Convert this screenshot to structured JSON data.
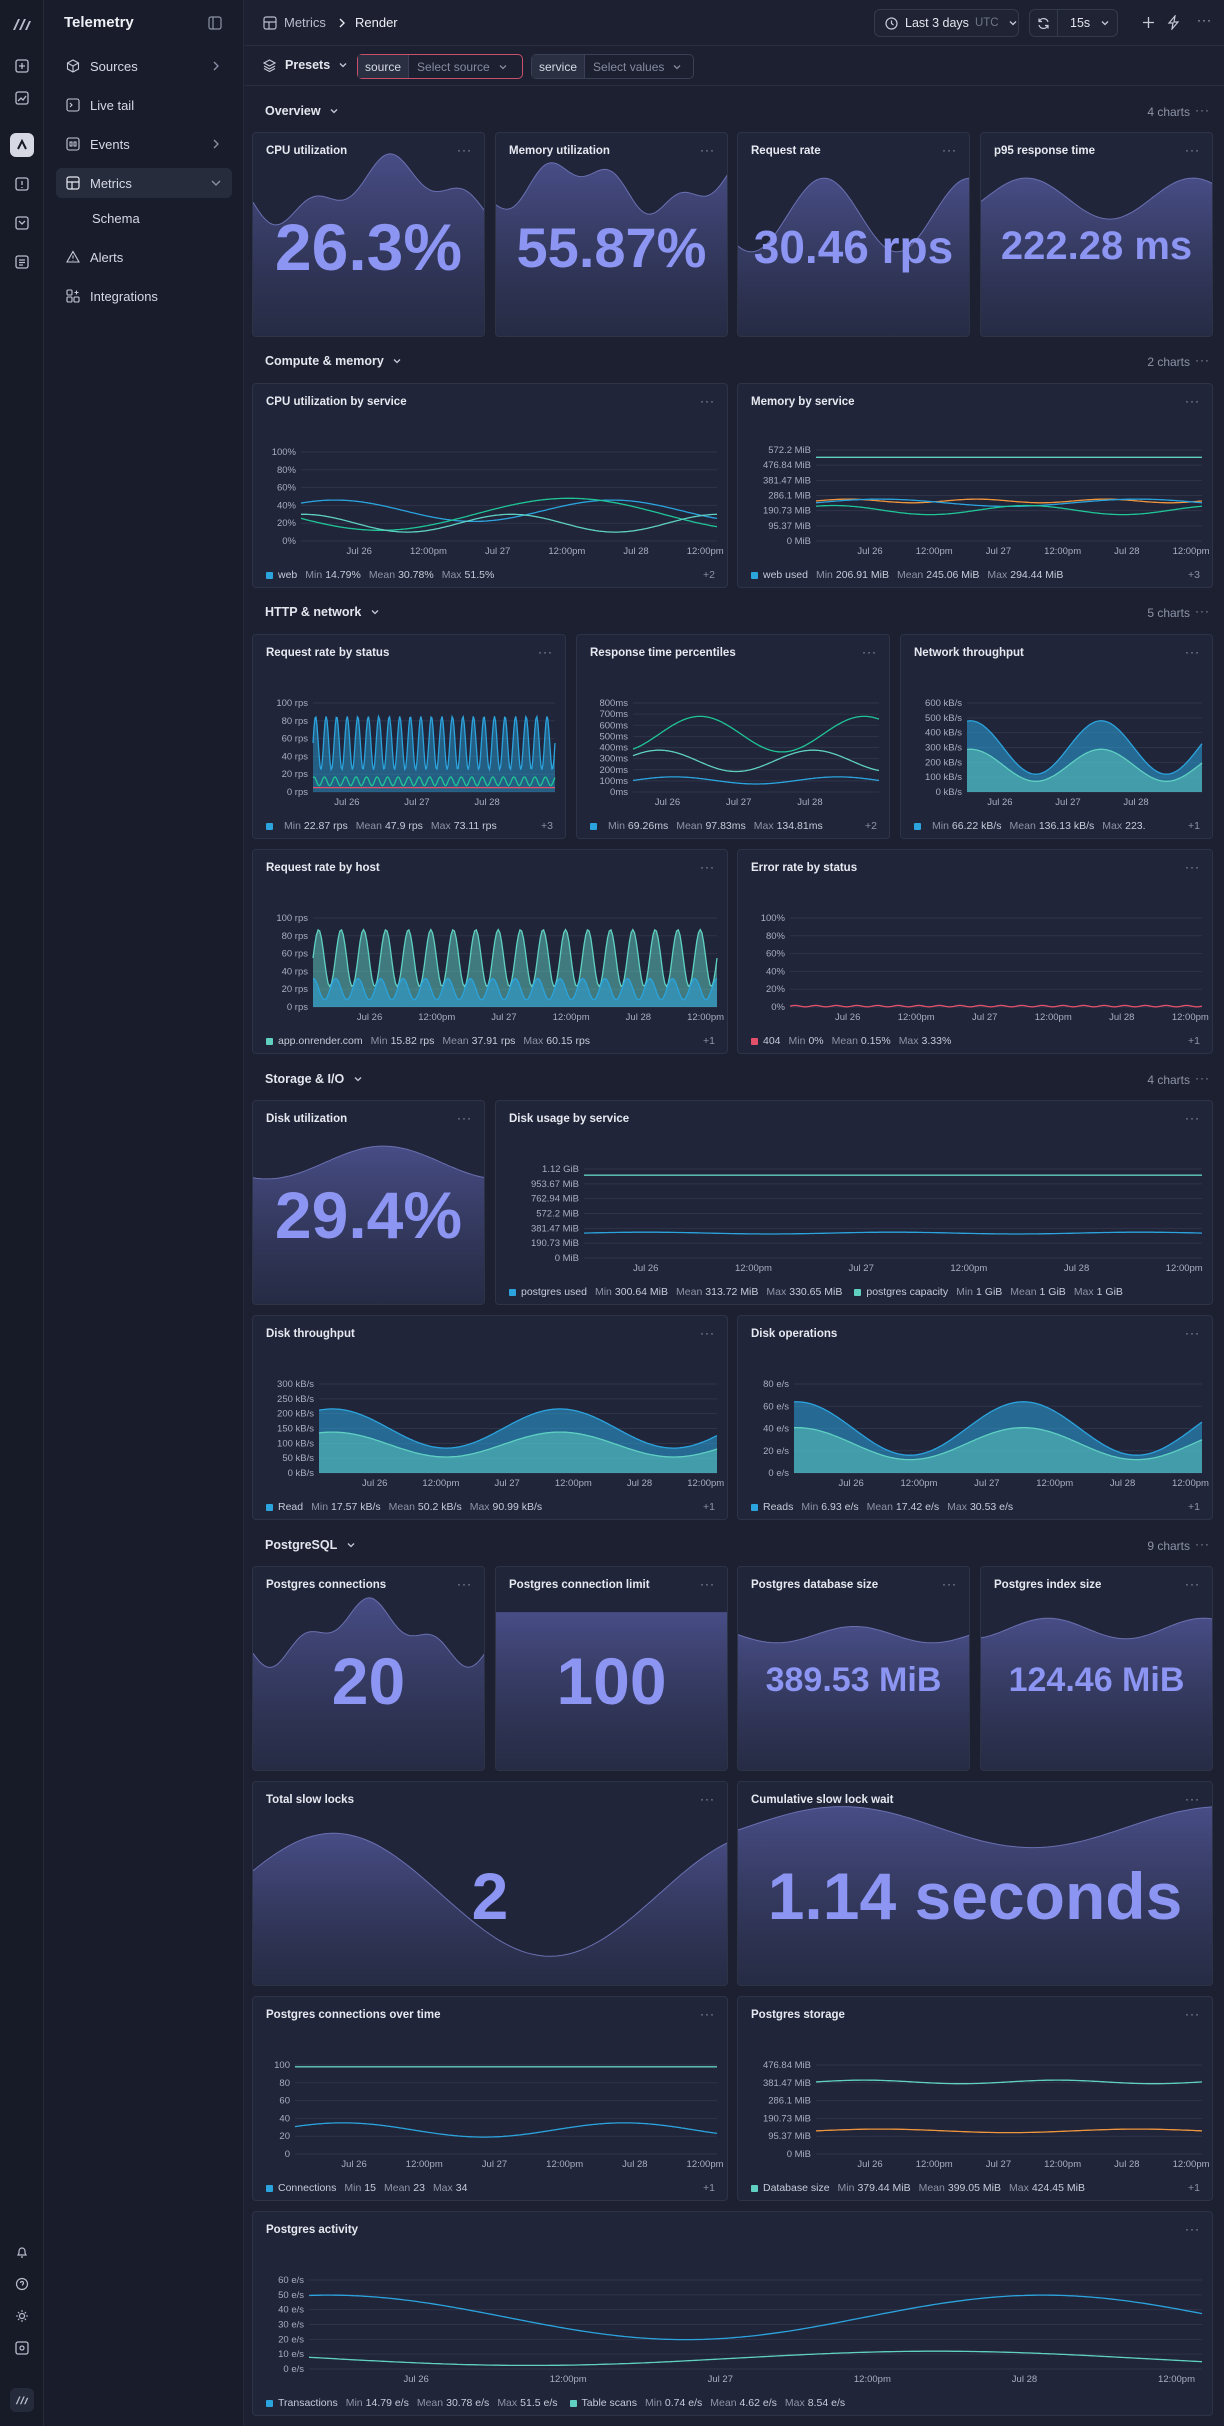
{
  "app": {
    "title": "Telemetry"
  },
  "nav": [
    {
      "label": "Sources",
      "icon": "cube-icon",
      "chevron": true
    },
    {
      "label": "Live tail",
      "icon": "terminal-icon",
      "chevron": false
    },
    {
      "label": "Events",
      "icon": "events-icon",
      "chevron": true
    },
    {
      "label": "Metrics",
      "icon": "grid-icon",
      "chevron": "down",
      "active": true
    },
    {
      "label": "Schema",
      "icon": "",
      "chevron": false,
      "sub": true
    },
    {
      "label": "Alerts",
      "icon": "warning-icon",
      "chevron": false
    },
    {
      "label": "Integrations",
      "icon": "puzzle-icon",
      "chevron": false
    }
  ],
  "breadcrumb": {
    "root": "Metrics",
    "current": "Render"
  },
  "toolbar": {
    "time_range": "Last 3 days",
    "tz": "UTC",
    "refresh": "15s"
  },
  "filters": {
    "presets": "Presets",
    "source_key": "source",
    "source_placeholder": "Select source",
    "service_key": "service",
    "service_placeholder": "Select values"
  },
  "sections": {
    "overview": {
      "title": "Overview",
      "count": "4 charts"
    },
    "compute": {
      "title": "Compute & memory",
      "count": "2 charts"
    },
    "http": {
      "title": "HTTP & network",
      "count": "5 charts"
    },
    "storage": {
      "title": "Storage & I/O",
      "count": "4 charts"
    },
    "postgres": {
      "title": "PostgreSQL",
      "count": "9 charts"
    }
  },
  "stats": {
    "cpu": {
      "title": "CPU utilization",
      "value": "26.3%"
    },
    "mem": {
      "title": "Memory utilization",
      "value": "55.87%"
    },
    "req": {
      "title": "Request rate",
      "value": "30.46 rps"
    },
    "p95": {
      "title": "p95 response time",
      "value": "222.28 ms"
    },
    "disk": {
      "title": "Disk utilization",
      "value": "29.4%"
    },
    "pgconn": {
      "title": "Postgres connections",
      "value": "20"
    },
    "pglimit": {
      "title": "Postgres connection limit",
      "value": "100"
    },
    "pgdb": {
      "title": "Postgres database size",
      "value": "389.53 MiB"
    },
    "pgidx": {
      "title": "Postgres index size",
      "value": "124.46 MiB"
    },
    "locks": {
      "title": "Total slow locks",
      "value": "2"
    },
    "lockwait": {
      "title": "Cumulative slow lock wait",
      "value": "1.14 seconds"
    }
  },
  "x_ticks_full": [
    "Jul 26",
    "12:00pm",
    "Jul 27",
    "12:00pm",
    "Jul 28",
    "12:00pm"
  ],
  "x_ticks_short": [
    "Jul 26",
    "Jul 27",
    "Jul 28"
  ],
  "charts": {
    "cpu_by_service": {
      "title": "CPU utilization by service",
      "y_ticks": [
        "100%",
        "80%",
        "60%",
        "40%",
        "20%",
        "0%"
      ],
      "legend": {
        "name": "web",
        "min": "14.79%",
        "mean": "30.78%",
        "max": "51.5%"
      },
      "more": "+2",
      "color": "#2ba3dd"
    },
    "mem_by_service": {
      "title": "Memory by service",
      "y_ticks": [
        "572.2 MiB",
        "476.84 MiB",
        "381.47 MiB",
        "286.1 MiB",
        "190.73 MiB",
        "95.37 MiB",
        "0 MiB"
      ],
      "legend": {
        "name": "web used",
        "min": "206.91 MiB",
        "mean": "245.06 MiB",
        "max": "294.44 MiB"
      },
      "more": "+3",
      "color": "#2ba3dd"
    },
    "req_by_status": {
      "title": "Request rate by status",
      "y_ticks": [
        "100 rps",
        "80 rps",
        "60 rps",
        "40 rps",
        "20 rps",
        "0 rps"
      ],
      "legend": {
        "name": "",
        "min": "22.87 rps",
        "mean": "47.9 rps",
        "max": "73.11 rps"
      },
      "more": "+3",
      "color": "#2ba3dd"
    },
    "resp_pct": {
      "title": "Response time percentiles",
      "y_ticks": [
        "800ms",
        "700ms",
        "600ms",
        "500ms",
        "400ms",
        "300ms",
        "200ms",
        "100ms",
        "0ms"
      ],
      "legend": {
        "name": "",
        "min": "69.26ms",
        "mean": "97.83ms",
        "max": "134.81ms"
      },
      "more": "+2",
      "color": "#2ba3dd"
    },
    "net": {
      "title": "Network throughput",
      "y_ticks": [
        "600 kB/s",
        "500 kB/s",
        "400 kB/s",
        "300 kB/s",
        "200 kB/s",
        "100 kB/s",
        "0 kB/s"
      ],
      "legend": {
        "name": "",
        "min": "66.22 kB/s",
        "mean": "136.13 kB/s",
        "max": "223."
      },
      "more": "+1",
      "color": "#2ba3dd"
    },
    "req_by_host": {
      "title": "Request rate by host",
      "y_ticks": [
        "100 rps",
        "80 rps",
        "60 rps",
        "40 rps",
        "20 rps",
        "0 rps"
      ],
      "legend": {
        "name": "app.onrender.com",
        "min": "15.82 rps",
        "mean": "37.91 rps",
        "max": "60.15 rps"
      },
      "more": "+1",
      "color": "#5fd0c2"
    },
    "err_by_status": {
      "title": "Error rate by status",
      "y_ticks": [
        "100%",
        "80%",
        "60%",
        "40%",
        "20%",
        "0%"
      ],
      "legend": {
        "name": "404",
        "min": "0%",
        "mean": "0.15%",
        "max": "3.33%"
      },
      "more": "+1",
      "color": "#e2506a"
    },
    "disk_usage": {
      "title": "Disk usage by service",
      "y_ticks": [
        "1.12 GiB",
        "953.67 MiB",
        "762.94 MiB",
        "572.2 MiB",
        "381.47 MiB",
        "190.73 MiB",
        "0 MiB"
      ],
      "legend": {
        "name": "postgres used",
        "min": "300.64 MiB",
        "mean": "313.72 MiB",
        "max": "330.65 MiB"
      },
      "legend2": {
        "name": "postgres capacity",
        "min": "1 GiB",
        "mean": "1 GiB",
        "max": "1 GiB"
      },
      "color": "#2ba3dd",
      "color2": "#5fd0c2"
    },
    "disk_tp": {
      "title": "Disk throughput",
      "y_ticks": [
        "300 kB/s",
        "250 kB/s",
        "200 kB/s",
        "150 kB/s",
        "100 kB/s",
        "50 kB/s",
        "0 kB/s"
      ],
      "legend": {
        "name": "Read",
        "min": "17.57 kB/s",
        "mean": "50.2 kB/s",
        "max": "90.99 kB/s"
      },
      "more": "+1",
      "color": "#2ba3dd"
    },
    "disk_ops": {
      "title": "Disk operations",
      "y_ticks": [
        "80 e/s",
        "60 e/s",
        "40 e/s",
        "20 e/s",
        "0 e/s"
      ],
      "legend": {
        "name": "Reads",
        "min": "6.93 e/s",
        "mean": "17.42 e/s",
        "max": "30.53 e/s"
      },
      "more": "+1",
      "color": "#2ba3dd"
    },
    "pg_conn_time": {
      "title": "Postgres connections over time",
      "y_ticks": [
        "100",
        "80",
        "60",
        "40",
        "20",
        "0"
      ],
      "legend": {
        "name": "Connections",
        "min": "15",
        "mean": "23",
        "max": "34"
      },
      "more": "+1",
      "color": "#2ba3dd"
    },
    "pg_storage": {
      "title": "Postgres storage",
      "y_ticks": [
        "476.84 MiB",
        "381.47 MiB",
        "286.1 MiB",
        "190.73 MiB",
        "95.37 MiB",
        "0 MiB"
      ],
      "legend": {
        "name": "Database size",
        "min": "379.44 MiB",
        "mean": "399.05 MiB",
        "max": "424.45 MiB"
      },
      "more": "+1",
      "color": "#5fd0c2"
    },
    "pg_activity": {
      "title": "Postgres activity",
      "y_ticks": [
        "60 e/s",
        "50 e/s",
        "40 e/s",
        "30 e/s",
        "20 e/s",
        "10 e/s",
        "0 e/s"
      ],
      "legend": {
        "name": "Transactions",
        "min": "14.79 e/s",
        "mean": "30.78 e/s",
        "max": "51.5 e/s"
      },
      "legend2": {
        "name": "Table scans",
        "min": "0.74 e/s",
        "mean": "4.62 e/s",
        "max": "8.54 e/s"
      },
      "color": "#2ba3dd",
      "color2": "#5fd0c2"
    }
  },
  "labels": {
    "min": "Min",
    "mean": "Mean",
    "max": "Max"
  }
}
